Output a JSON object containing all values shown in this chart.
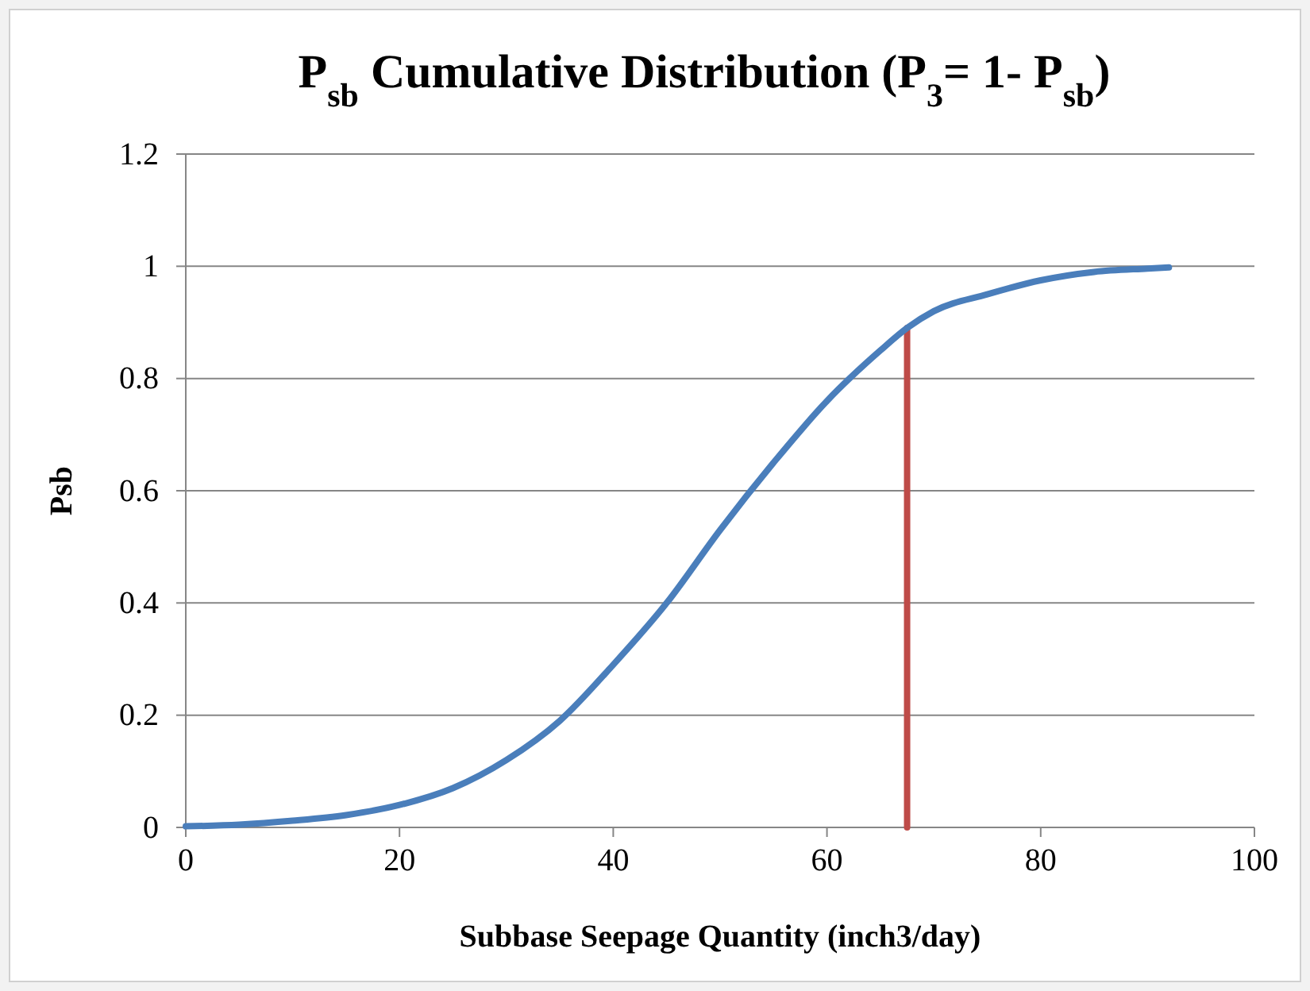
{
  "chart_data": {
    "type": "line",
    "title": "P$_{sb}$ Cumulative Distribution (P$_{3}$= 1- P$_{sb}$)",
    "xlabel": "Subbase Seepage Quantity (inch3/day)",
    "ylabel": "Psb",
    "xlim": [
      0,
      100
    ],
    "xticks": [
      0,
      20,
      40,
      60,
      80,
      100
    ],
    "ylim": [
      0,
      1.2
    ],
    "yticks": [
      0,
      {
        "value": 0.2,
        "label": "0.2"
      },
      {
        "value": 0.4,
        "label": "0.4"
      },
      {
        "value": 0.6,
        "label": "0.6"
      },
      {
        "value": 0.8,
        "label": "0.8"
      },
      1,
      {
        "value": 1.2,
        "label": "1.2"
      }
    ],
    "grid": "y",
    "marker": "none",
    "line_style": "solid",
    "series": [
      {
        "color": "#4a7ebb",
        "x": [
          0,
          5,
          10,
          15,
          20,
          25,
          30,
          35,
          40,
          45,
          50,
          55,
          60,
          65,
          67.5,
          70,
          75,
          80,
          85,
          90,
          92
        ],
        "values": [
          0.002,
          0.005,
          0.012,
          0.022,
          0.04,
          0.07,
          0.12,
          0.19,
          0.29,
          0.4,
          0.53,
          0.65,
          0.76,
          0.85,
          0.89,
          0.92,
          0.95,
          0.975,
          0.99,
          0.996,
          0.998
        ]
      },
      {
        "color": "#be4b48",
        "x": [
          67.5,
          67.5
        ],
        "values": [
          0,
          0.89
        ]
      }
    ]
  }
}
